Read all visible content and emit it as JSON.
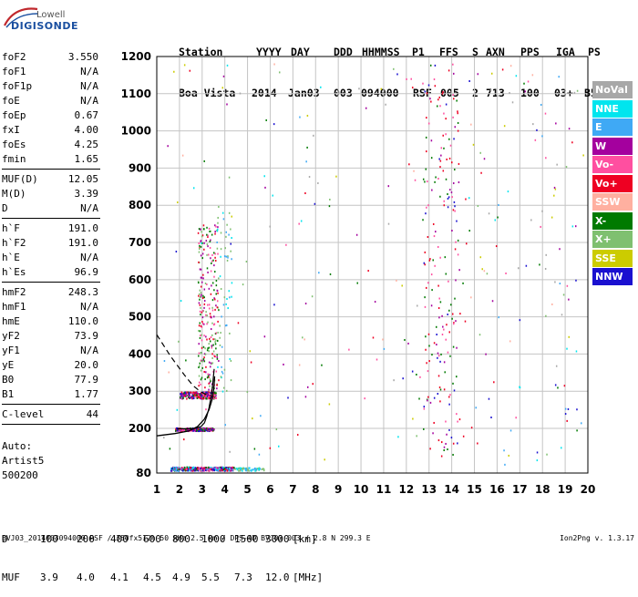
{
  "logo": {
    "top": "Lowell",
    "bottom": "DIGISONDE"
  },
  "header": {
    "labels": [
      "Station",
      "YYYY",
      "DAY",
      "DDD",
      "HHMMSS",
      "P1",
      "FFS",
      "S",
      "AXN",
      "PPS",
      "IGA",
      "PS"
    ],
    "values": [
      "Boa Vista",
      "2014",
      "Jan03",
      "003",
      "094000",
      "RSF",
      "005",
      "2",
      "713",
      "100",
      "03+",
      "B5"
    ]
  },
  "params": [
    [
      {
        "k": "foF2",
        "v": "3.550"
      },
      {
        "k": "foF1",
        "v": "N/A"
      },
      {
        "k": "foF1p",
        "v": "N/A"
      },
      {
        "k": "foE",
        "v": "N/A"
      },
      {
        "k": "foEp",
        "v": "0.67"
      },
      {
        "k": "fxI",
        "v": "4.00"
      },
      {
        "k": "foEs",
        "v": "4.25"
      },
      {
        "k": "fmin",
        "v": "1.65"
      }
    ],
    [
      {
        "k": "MUF(D)",
        "v": "12.05"
      },
      {
        "k": "M(D)",
        "v": "3.39"
      },
      {
        "k": "D",
        "v": "N/A"
      }
    ],
    [
      {
        "k": "h`F",
        "v": "191.0"
      },
      {
        "k": "h`F2",
        "v": "191.0"
      },
      {
        "k": "h`E",
        "v": "N/A"
      },
      {
        "k": "h`Es",
        "v": "96.9"
      }
    ],
    [
      {
        "k": "hmF2",
        "v": "248.3"
      },
      {
        "k": "hmF1",
        "v": "N/A"
      },
      {
        "k": "hmE",
        "v": "110.0"
      },
      {
        "k": "yF2",
        "v": "73.9"
      },
      {
        "k": "yF1",
        "v": "N/A"
      },
      {
        "k": "yE",
        "v": "20.0"
      },
      {
        "k": "B0",
        "v": "77.9"
      },
      {
        "k": "B1",
        "v": "1.77"
      }
    ],
    [
      {
        "k": "C-level",
        "v": "44"
      }
    ]
  ],
  "autoscale": {
    "line1": "Auto:",
    "line2": "Artist5",
    "line3": "500200"
  },
  "legend": [
    {
      "label": "NoVal",
      "color": "#a8a8a8"
    },
    {
      "label": "NNE",
      "color": "#00e5ee"
    },
    {
      "label": "E",
      "color": "#3fa9f5"
    },
    {
      "label": "W",
      "color": "#a4009e"
    },
    {
      "label": "Vo-",
      "color": "#ff4fa0"
    },
    {
      "label": "Vo+",
      "color": "#ee0022"
    },
    {
      "label": "SSW",
      "color": "#ffb0a0"
    },
    {
      "label": "X-",
      "color": "#007a00"
    },
    {
      "label": "X+",
      "color": "#7fc070"
    },
    {
      "label": "SSE",
      "color": "#cccc00"
    },
    {
      "label": "NNW",
      "color": "#1a10d0"
    }
  ],
  "muf_table": {
    "row1_label": "D",
    "row1_values": [
      "100",
      "200",
      "400",
      "600",
      "800",
      "1000",
      "1500",
      "3000"
    ],
    "row1_unit": "[km]",
    "row2_label": "MUF",
    "row2_values": [
      "3.9",
      "4.0",
      "4.1",
      "4.5",
      "4.9",
      "5.5",
      "7.3",
      "12.0"
    ],
    "row2_unit": "[MHz]"
  },
  "footer": "BVJ03_2014003094000.RSF / 380fx512h 50 kHz 2.5 km / DPS-4D BVJ03 003 / 2.8 N 299.3 E",
  "version": "Ion2Png v. 1.3.17",
  "chart_data": {
    "type": "scatter",
    "xlabel": "",
    "ylabel": "",
    "xlim": [
      1,
      20
    ],
    "ylim": [
      80,
      1200
    ],
    "x_ticks": [
      1,
      2,
      3,
      4,
      5,
      6,
      7,
      8,
      9,
      10,
      11,
      12,
      13,
      14,
      15,
      16,
      17,
      18,
      19,
      20
    ],
    "y_ticks": [
      80,
      200,
      300,
      400,
      500,
      600,
      700,
      800,
      900,
      1000,
      1100,
      1200
    ],
    "grid": true,
    "profile_curve": [
      [
        1.0,
        180
      ],
      [
        1.8,
        186
      ],
      [
        2.4,
        193
      ],
      [
        2.8,
        205
      ],
      [
        3.1,
        225
      ],
      [
        3.3,
        250
      ],
      [
        3.45,
        280
      ],
      [
        3.52,
        310
      ],
      [
        3.55,
        340
      ]
    ],
    "ordinary_trace": [
      [
        1.9,
        199
      ],
      [
        2.3,
        199
      ],
      [
        2.7,
        200
      ],
      [
        2.95,
        205
      ],
      [
        3.1,
        215
      ],
      [
        3.2,
        232
      ],
      [
        3.3,
        255
      ],
      [
        3.38,
        280
      ],
      [
        3.45,
        310
      ],
      [
        3.5,
        340
      ],
      [
        3.53,
        360
      ]
    ],
    "dashed_trace": [
      [
        1.0,
        452
      ],
      [
        1.6,
        395
      ],
      [
        2.2,
        345
      ],
      [
        2.6,
        315
      ],
      [
        2.9,
        300
      ],
      [
        3.2,
        290
      ]
    ],
    "legend": [
      "NoVal",
      "NNE",
      "E",
      "W",
      "Vo-",
      "Vo+",
      "SSW",
      "X-",
      "X+",
      "SSE",
      "NNW"
    ]
  }
}
